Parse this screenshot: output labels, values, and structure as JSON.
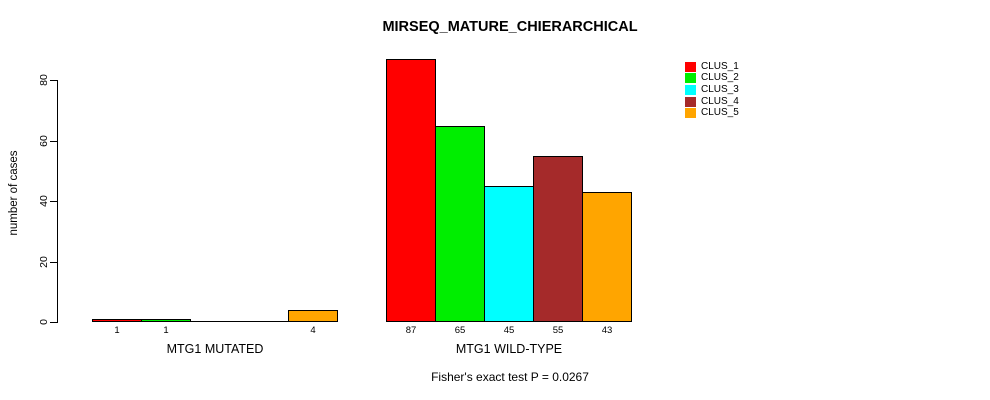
{
  "chart_data": {
    "type": "bar",
    "title": "MIRSEQ_MATURE_CHIERARCHICAL",
    "ylabel": "number of cases",
    "xlabel": "",
    "categories": [
      "MTG1 MUTATED",
      "MTG1 WILD-TYPE"
    ],
    "series": [
      {
        "name": "CLUS_1",
        "color": "#FF0000",
        "values": [
          1,
          87
        ]
      },
      {
        "name": "CLUS_2",
        "color": "#00EE00",
        "values": [
          1,
          65
        ]
      },
      {
        "name": "CLUS_3",
        "color": "#00FFFF",
        "values": [
          0,
          45
        ]
      },
      {
        "name": "CLUS_4",
        "color": "#A52A2A",
        "values": [
          0,
          55
        ]
      },
      {
        "name": "CLUS_5",
        "color": "#FFA500",
        "values": [
          4,
          43
        ]
      }
    ],
    "ylim": [
      0,
      87
    ],
    "yticks": [
      0,
      20,
      40,
      60,
      80
    ],
    "legend_position": "top-right",
    "grid": false,
    "zero_bars_unlabeled": true,
    "subtitle": "Fisher's exact test P = 0.0267"
  }
}
